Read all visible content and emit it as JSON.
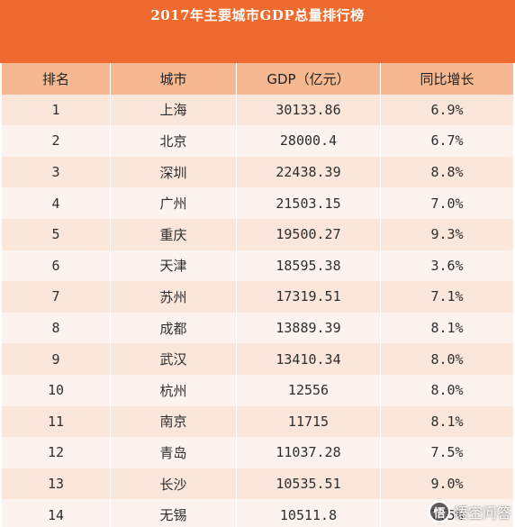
{
  "title": "2017年主要城市GDP总量排行榜",
  "headers": {
    "rank": "排名",
    "city": "城市",
    "gdp": "GDP（亿元）",
    "growth": "同比增长"
  },
  "rows": [
    {
      "rank": "1",
      "city": "上海",
      "gdp": "30133.86",
      "growth": "6.9%"
    },
    {
      "rank": "2",
      "city": "北京",
      "gdp": "28000.4",
      "growth": "6.7%"
    },
    {
      "rank": "3",
      "city": "深圳",
      "gdp": "22438.39",
      "growth": "8.8%"
    },
    {
      "rank": "4",
      "city": "广州",
      "gdp": "21503.15",
      "growth": "7.0%"
    },
    {
      "rank": "5",
      "city": "重庆",
      "gdp": "19500.27",
      "growth": "9.3%"
    },
    {
      "rank": "6",
      "city": "天津",
      "gdp": "18595.38",
      "growth": "3.6%"
    },
    {
      "rank": "7",
      "city": "苏州",
      "gdp": "17319.51",
      "growth": "7.1%"
    },
    {
      "rank": "8",
      "city": "成都",
      "gdp": "13889.39",
      "growth": "8.1%"
    },
    {
      "rank": "9",
      "city": "武汉",
      "gdp": "13410.34",
      "growth": "8.0%"
    },
    {
      "rank": "10",
      "city": "杭州",
      "gdp": "12556",
      "growth": "8.0%"
    },
    {
      "rank": "11",
      "city": "南京",
      "gdp": "11715",
      "growth": "8.1%"
    },
    {
      "rank": "12",
      "city": "青岛",
      "gdp": "11037.28",
      "growth": "7.5%"
    },
    {
      "rank": "13",
      "city": "长沙",
      "gdp": "10535.51",
      "growth": "9.0%"
    },
    {
      "rank": "14",
      "city": "无锡",
      "gdp": "10511.8",
      "growth": "7.5%"
    }
  ],
  "watermark": {
    "text": "悟空问答",
    "icon": "wukong-logo-icon"
  },
  "colors": {
    "title_bg": "#ee6a2e",
    "header_bg": "#f5b890",
    "row_odd": "#fbe6db",
    "row_even": "#fdf3ee"
  }
}
